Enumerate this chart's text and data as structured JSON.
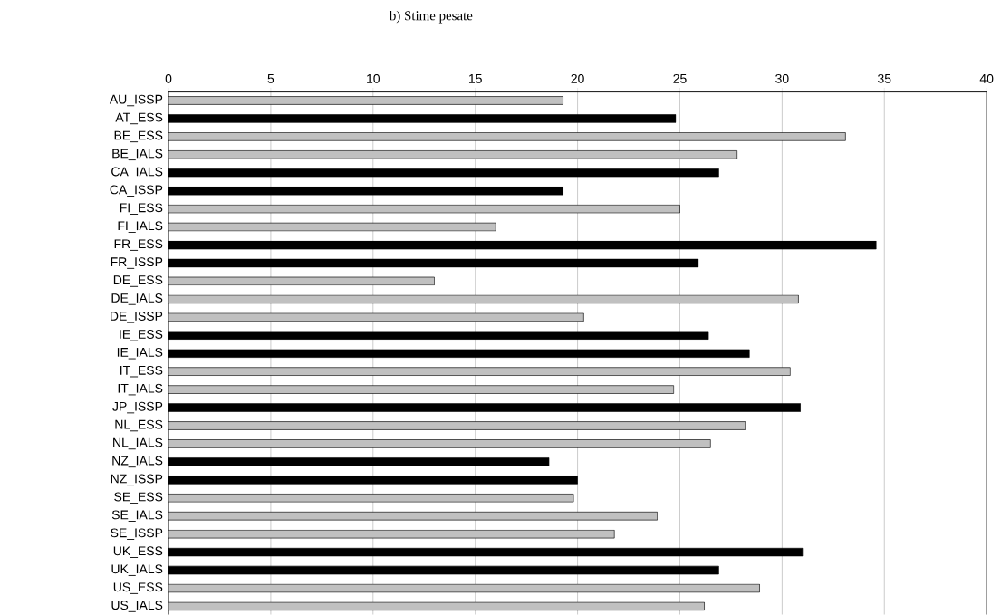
{
  "chart_data": {
    "type": "bar",
    "orientation": "horizontal",
    "title": "b) Stime pesate",
    "categories": [
      "AU_ISSP",
      "AT_ESS",
      "BE_ESS",
      "BE_IALS",
      "CA_IALS",
      "CA_ISSP",
      "FI_ESS",
      "FI_IALS",
      "FR_ESS",
      "FR_ISSP",
      "DE_ESS",
      "DE_IALS",
      "DE_ISSP",
      "IE_ESS",
      "IE_IALS",
      "IT_ESS",
      "IT_IALS",
      "JP_ISSP",
      "NL_ESS",
      "NL_IALS",
      "NZ_IALS",
      "NZ_ISSP",
      "SE_ESS",
      "SE_IALS",
      "SE_ISSP",
      "UK_ESS",
      "UK_IALS",
      "US_ESS",
      "US_IALS"
    ],
    "values": [
      19.3,
      24.8,
      33.1,
      27.8,
      26.9,
      19.3,
      25.0,
      16.0,
      34.6,
      25.9,
      13.0,
      30.8,
      20.3,
      26.4,
      28.4,
      30.4,
      24.7,
      30.9,
      28.2,
      26.5,
      18.6,
      20.0,
      19.8,
      23.9,
      21.8,
      31.0,
      26.9,
      28.9,
      26.2
    ],
    "colors": [
      "#c0c0c0",
      "#000000",
      "#c0c0c0",
      "#c0c0c0",
      "#000000",
      "#000000",
      "#c0c0c0",
      "#c0c0c0",
      "#000000",
      "#000000",
      "#c0c0c0",
      "#c0c0c0",
      "#c0c0c0",
      "#000000",
      "#000000",
      "#c0c0c0",
      "#c0c0c0",
      "#000000",
      "#c0c0c0",
      "#c0c0c0",
      "#000000",
      "#000000",
      "#c0c0c0",
      "#c0c0c0",
      "#c0c0c0",
      "#000000",
      "#000000",
      "#c0c0c0",
      "#c0c0c0"
    ],
    "xlim": [
      0,
      40
    ],
    "xticks": [
      0,
      5,
      10,
      15,
      20,
      25,
      30,
      35,
      40
    ],
    "grid": "x"
  }
}
